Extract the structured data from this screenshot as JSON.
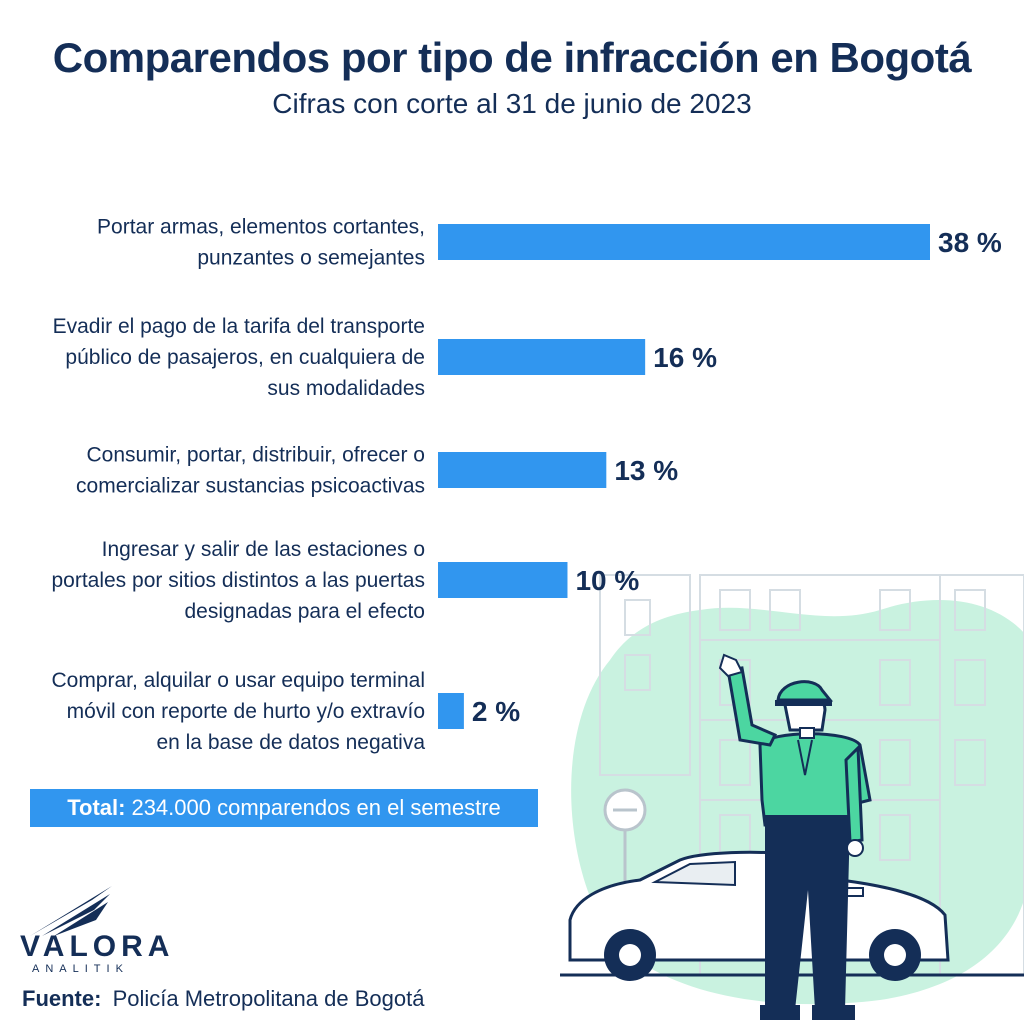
{
  "header": {
    "title": "Comparendos por tipo de infracción en Bogotá",
    "subtitle": "Cifras con corte al 31 de junio de 2023"
  },
  "chart_data": {
    "type": "bar",
    "orientation": "horizontal",
    "title": "Comparendos por tipo de infracción en Bogotá",
    "subtitle": "Cifras con corte al 31 de junio de 2023",
    "unit": "%",
    "xlim": [
      0,
      38
    ],
    "grid": false,
    "legend": "none",
    "bar_color": "#3196ef",
    "categories": [
      [
        "Portar armas, elementos cortantes,",
        "punzantes o semejantes"
      ],
      [
        "Evadir el pago de la tarifa del transporte",
        "público de pasajeros, en cualquiera de",
        "sus modalidades"
      ],
      [
        "Consumir, portar, distribuir, ofrecer o",
        "comercializar sustancias psicoactivas"
      ],
      [
        "Ingresar y salir de las estaciones o",
        "portales por sitios distintos a las puertas",
        "designadas para el efecto"
      ],
      [
        "Comprar, alquilar o usar equipo terminal",
        "móvil con reporte de hurto y/o extravío",
        "en la base de datos negativa"
      ]
    ],
    "values": [
      38,
      16,
      13,
      10,
      2
    ],
    "value_labels": [
      "38 %",
      "16 %",
      "13 %",
      "10 %",
      "2 %"
    ]
  },
  "total": {
    "label": "Total:",
    "text": "234.000 comparendos en el semestre"
  },
  "logo": {
    "name": "VALORA",
    "sub": "ANALITIK"
  },
  "source": {
    "label": "Fuente:",
    "text": "Policía Metropolitana de Bogotá"
  },
  "colors": {
    "navy": "#142e57",
    "bar": "#3196ef",
    "mint": "#c9f2e0",
    "uniform": "#4cd6a1"
  },
  "illustration": {
    "icons": [
      "traffic-officer-illustration",
      "car-icon",
      "building-icon",
      "no-entry-sign-icon"
    ]
  }
}
